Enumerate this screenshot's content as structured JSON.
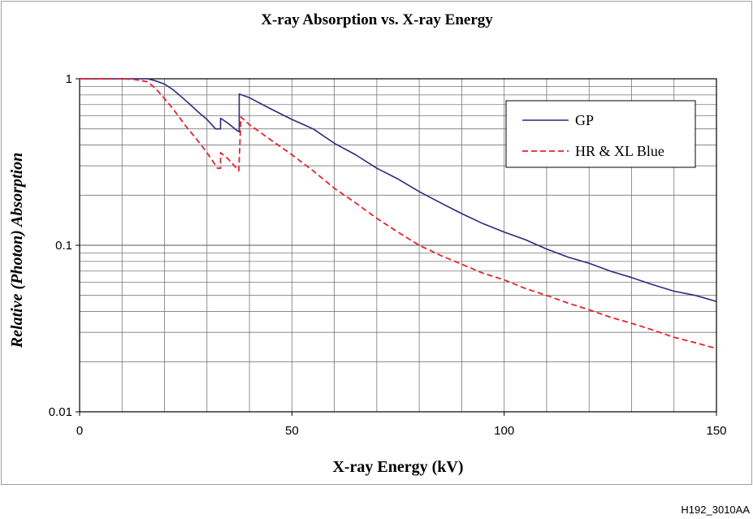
{
  "figure_code": "H192_3010AA",
  "chart_data": {
    "type": "line",
    "title": "X-ray Absorption vs. X-ray Energy",
    "xlabel": "X-ray Energy (kV)",
    "ylabel": "Relative (Photon) Absorption",
    "xlim": [
      0,
      150
    ],
    "ylim": [
      0.01,
      1
    ],
    "y_scale": "log",
    "x_ticks": [
      0,
      50,
      100,
      150
    ],
    "x_tick_labels": [
      "0",
      "50",
      "100",
      "150"
    ],
    "y_ticks": [
      0.01,
      0.1,
      1
    ],
    "y_tick_labels": [
      "0.01",
      "0.1",
      "1"
    ],
    "grid": true,
    "legend_position": "top-right",
    "series": [
      {
        "name": "GP",
        "color": "#2b2b7a",
        "style": "solid",
        "points": [
          [
            0,
            1
          ],
          [
            10,
            1
          ],
          [
            14,
            1
          ],
          [
            16,
            1
          ],
          [
            18,
            0.97
          ],
          [
            20,
            0.93
          ],
          [
            22,
            0.86
          ],
          [
            25,
            0.74
          ],
          [
            28,
            0.63
          ],
          [
            30,
            0.57
          ],
          [
            32,
            0.5
          ],
          [
            33.2,
            0.5
          ],
          [
            33.2,
            0.58
          ],
          [
            35,
            0.54
          ],
          [
            37,
            0.49
          ],
          [
            37.6,
            0.48
          ],
          [
            37.6,
            0.81
          ],
          [
            40,
            0.77
          ],
          [
            45,
            0.66
          ],
          [
            50,
            0.57
          ],
          [
            55,
            0.5
          ],
          [
            60,
            0.41
          ],
          [
            65,
            0.35
          ],
          [
            70,
            0.29
          ],
          [
            75,
            0.25
          ],
          [
            80,
            0.21
          ],
          [
            85,
            0.18
          ],
          [
            90,
            0.155
          ],
          [
            95,
            0.135
          ],
          [
            100,
            0.12
          ],
          [
            105,
            0.108
          ],
          [
            110,
            0.095
          ],
          [
            115,
            0.085
          ],
          [
            120,
            0.078
          ],
          [
            125,
            0.07
          ],
          [
            130,
            0.064
          ],
          [
            135,
            0.058
          ],
          [
            140,
            0.053
          ],
          [
            145,
            0.05
          ],
          [
            150,
            0.046
          ]
        ]
      },
      {
        "name": "HR & XL Blue",
        "color": "#e8202a",
        "style": "dashed",
        "points": [
          [
            0,
            1
          ],
          [
            10,
            1
          ],
          [
            13,
            0.99
          ],
          [
            16,
            0.96
          ],
          [
            18,
            0.87
          ],
          [
            20,
            0.76
          ],
          [
            22,
            0.66
          ],
          [
            25,
            0.52
          ],
          [
            28,
            0.42
          ],
          [
            30,
            0.36
          ],
          [
            32.5,
            0.29
          ],
          [
            33.2,
            0.29
          ],
          [
            33.2,
            0.36
          ],
          [
            35,
            0.33
          ],
          [
            37.5,
            0.28
          ],
          [
            37.5,
            0.28
          ],
          [
            38,
            0.59
          ],
          [
            40,
            0.53
          ],
          [
            45,
            0.43
          ],
          [
            50,
            0.35
          ],
          [
            55,
            0.28
          ],
          [
            60,
            0.22
          ],
          [
            65,
            0.18
          ],
          [
            70,
            0.145
          ],
          [
            75,
            0.12
          ],
          [
            80,
            0.1
          ],
          [
            85,
            0.087
          ],
          [
            90,
            0.077
          ],
          [
            95,
            0.068
          ],
          [
            100,
            0.062
          ],
          [
            105,
            0.055
          ],
          [
            110,
            0.05
          ],
          [
            115,
            0.045
          ],
          [
            120,
            0.041
          ],
          [
            125,
            0.037
          ],
          [
            130,
            0.034
          ],
          [
            135,
            0.031
          ],
          [
            140,
            0.028
          ],
          [
            145,
            0.026
          ],
          [
            150,
            0.024
          ]
        ]
      }
    ]
  }
}
